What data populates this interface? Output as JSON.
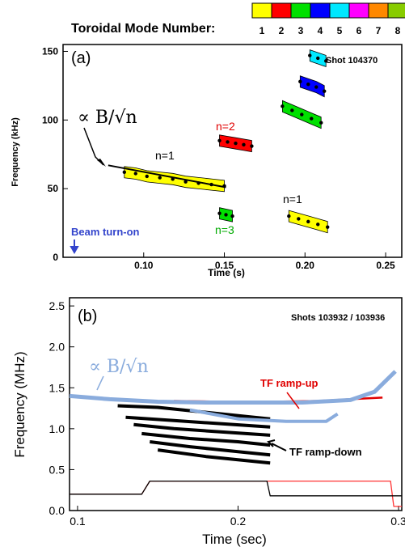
{
  "legend": {
    "title": "Toroidal Mode Number:",
    "entries": [
      {
        "n": "1",
        "color": "#ffff00"
      },
      {
        "n": "2",
        "color": "#ff0000"
      },
      {
        "n": "3",
        "color": "#00e000"
      },
      {
        "n": "4",
        "color": "#0000ff"
      },
      {
        "n": "5",
        "color": "#00e8ff"
      },
      {
        "n": "6",
        "color": "#ff00ff"
      },
      {
        "n": "7",
        "color": "#ff8800"
      },
      {
        "n": "8",
        "color": "#88cc00"
      }
    ]
  },
  "chart_data": [
    {
      "type": "scatter",
      "panel_label": "(a)",
      "shot_label": "Shot 104370",
      "xlabel": "Time (s)",
      "ylabel": "Frequency (kHz)",
      "xlim": [
        0.05,
        0.26
      ],
      "ylim": [
        0,
        155
      ],
      "xticks": [
        "0.10",
        "0.15",
        "0.20",
        "0.25"
      ],
      "yticks": [
        "0",
        "50",
        "100",
        "150"
      ],
      "annotations": {
        "scaling": "∝ B/√n",
        "beam": "Beam turn-on",
        "n1_upper": "n=1",
        "n2": "n=2",
        "n3": "n=3",
        "n1_lower": "n=1"
      },
      "fit_line": {
        "x": [
          0.078,
          0.151
        ],
        "y": [
          67,
          51
        ]
      },
      "series": [
        {
          "mode": 1,
          "color": "#ffff00",
          "x": [
            0.088,
            0.095,
            0.102,
            0.11,
            0.118,
            0.126,
            0.134,
            0.142,
            0.15
          ],
          "y": [
            62,
            61,
            59,
            58,
            57,
            55,
            54,
            53,
            52
          ]
        },
        {
          "mode": 2,
          "color": "#ff0000",
          "x": [
            0.147,
            0.152,
            0.157,
            0.162,
            0.167
          ],
          "y": [
            85,
            84,
            83,
            82,
            81
          ]
        },
        {
          "mode": 3,
          "color": "#00e000",
          "x": [
            0.147,
            0.151,
            0.155
          ],
          "y": [
            32,
            31,
            30
          ]
        },
        {
          "mode": 3,
          "color": "#00e000",
          "x": [
            0.186,
            0.192,
            0.198,
            0.204,
            0.21
          ],
          "y": [
            110,
            107,
            104,
            101,
            98
          ]
        },
        {
          "mode": 4,
          "color": "#0000ff",
          "x": [
            0.197,
            0.202,
            0.207,
            0.212
          ],
          "y": [
            128,
            126,
            124,
            121
          ]
        },
        {
          "mode": 5,
          "color": "#00e8ff",
          "x": [
            0.203,
            0.208,
            0.213
          ],
          "y": [
            147,
            145,
            143
          ]
        },
        {
          "mode": 1,
          "color": "#ffff00",
          "x": [
            0.19,
            0.196,
            0.202,
            0.208,
            0.214
          ],
          "y": [
            30,
            28,
            26,
            24,
            22
          ]
        }
      ]
    },
    {
      "type": "scatter",
      "panel_label": "(b)",
      "shot_label": "Shots 103932 / 103936",
      "xlabel": "Time (sec)",
      "ylabel": "Frequency (MHz)",
      "xlim": [
        0.095,
        0.302
      ],
      "ylim": [
        0,
        2.6
      ],
      "xticks": [
        "0.1",
        "0.2",
        "0.3"
      ],
      "yticks": [
        "0.0",
        "0.5",
        "1.0",
        "1.5",
        "2.0",
        "2.5"
      ],
      "annotations": {
        "scaling": "∝ B/√n",
        "ramp_up": "TF ramp-up",
        "ramp_down": "TF ramp-down"
      },
      "scaling_curve_upper": {
        "x": [
          0.095,
          0.12,
          0.15,
          0.18,
          0.21,
          0.24,
          0.27,
          0.285,
          0.298
        ],
        "y": [
          1.4,
          1.36,
          1.33,
          1.32,
          1.32,
          1.32,
          1.35,
          1.45,
          1.7
        ]
      },
      "scaling_curve_lower": {
        "x": [
          0.17,
          0.2,
          0.23,
          0.255,
          0.262
        ],
        "y": [
          1.23,
          1.12,
          1.09,
          1.09,
          1.18
        ]
      },
      "ramp_up_points": {
        "x": [
          0.16,
          0.19,
          0.22,
          0.25,
          0.27,
          0.29
        ],
        "y": [
          1.34,
          1.33,
          1.33,
          1.34,
          1.36,
          1.38
        ]
      },
      "ramp_down_bands": [
        {
          "x": [
            0.125,
            0.15,
            0.18,
            0.21,
            0.22
          ],
          "y": [
            1.28,
            1.26,
            1.2,
            1.14,
            1.12
          ]
        },
        {
          "x": [
            0.13,
            0.16,
            0.19,
            0.22
          ],
          "y": [
            1.14,
            1.1,
            1.06,
            1.02
          ]
        },
        {
          "x": [
            0.135,
            0.16,
            0.19,
            0.22
          ],
          "y": [
            1.05,
            1.0,
            0.96,
            0.92
          ]
        },
        {
          "x": [
            0.14,
            0.17,
            0.2,
            0.22
          ],
          "y": [
            0.94,
            0.88,
            0.84,
            0.8
          ]
        },
        {
          "x": [
            0.145,
            0.17,
            0.2,
            0.22
          ],
          "y": [
            0.84,
            0.78,
            0.72,
            0.68
          ]
        },
        {
          "x": [
            0.15,
            0.18,
            0.21,
            0.22
          ],
          "y": [
            0.74,
            0.66,
            0.6,
            0.58
          ]
        }
      ],
      "tf_ramp_up_trace": {
        "x": [
          0.095,
          0.14,
          0.145,
          0.295,
          0.297,
          0.302
        ],
        "y": [
          0.2,
          0.2,
          0.36,
          0.36,
          0.05,
          0.05
        ]
      },
      "tf_ramp_down_trace": {
        "x": [
          0.095,
          0.14,
          0.145,
          0.218,
          0.22,
          0.302
        ],
        "y": [
          0.2,
          0.2,
          0.36,
          0.36,
          0.18,
          0.18
        ]
      }
    }
  ]
}
